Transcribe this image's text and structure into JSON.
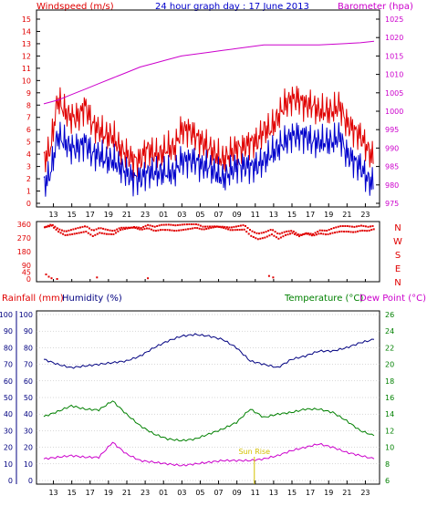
{
  "header": {
    "title": "24 hour graph day : 17 June 2013",
    "left_label": "Windspeed (m/s)",
    "right_label": "Barometer (hpa)"
  },
  "x_ticks": [
    "13",
    "15",
    "17",
    "19",
    "21",
    "23",
    "01",
    "03",
    "05",
    "07",
    "09",
    "11",
    "13",
    "15",
    "17",
    "19",
    "21",
    "23"
  ],
  "colors": {
    "red": "#e00000",
    "blue": "#0000cc",
    "magenta": "#cc00cc",
    "green": "#008000",
    "darkblue": "#000080",
    "yellow": "#d4c000",
    "grid": "#b0b0b0",
    "axis": "#000000"
  },
  "chart_data": [
    {
      "type": "line",
      "panel": "wind-barometer",
      "x_labels": [
        "13",
        "15",
        "17",
        "19",
        "21",
        "23",
        "01",
        "03",
        "05",
        "07",
        "09",
        "11",
        "13",
        "15",
        "17",
        "19",
        "21",
        "23"
      ],
      "left_axis": {
        "label": "Windspeed (m/s)",
        "ticks": [
          0,
          1,
          2,
          3,
          4,
          5,
          6,
          7,
          8,
          9,
          10,
          11,
          12,
          13,
          14,
          15
        ],
        "range": [
          0,
          15
        ]
      },
      "right_axis": {
        "label": "Barometer (hpa)",
        "ticks": [
          975,
          980,
          985,
          990,
          995,
          1000,
          1005,
          1010,
          1015,
          1020,
          1025
        ],
        "range": [
          975,
          1025
        ]
      },
      "series": [
        {
          "name": "Windspeed",
          "color": "#e00000",
          "axis": "left",
          "x": [
            0,
            0.5,
            1,
            1.5,
            2,
            2.5,
            3,
            3.5,
            4,
            4.5,
            5,
            5.5,
            6,
            6.5,
            7,
            7.5,
            8,
            8.5,
            9,
            9.5,
            10,
            10.5,
            11,
            11.5,
            12,
            12.5,
            13,
            13.5,
            14,
            14.5,
            15,
            15.5,
            16,
            16.5,
            17,
            17.5,
            18,
            18.5,
            19,
            19.5,
            20,
            20.5,
            21,
            21.5,
            22,
            22.5,
            23,
            23.5,
            24
          ],
          "y": [
            3.5,
            4.5,
            8.5,
            7.5,
            7,
            7,
            8,
            6.5,
            6,
            5.5,
            5.5,
            4.5,
            4,
            3.5,
            3.5,
            4.5,
            4,
            4,
            4.5,
            4.5,
            6,
            6,
            5.5,
            5,
            4.5,
            4,
            3.5,
            4,
            4.5,
            4.5,
            5,
            5,
            6,
            6,
            7,
            8,
            8.5,
            8.5,
            8,
            8,
            7.5,
            7.5,
            7.5,
            8,
            6.5,
            6,
            5.5,
            4.5,
            3.5
          ]
        },
        {
          "name": "Gust",
          "color": "#0000cc",
          "axis": "left",
          "x": [
            0,
            0.5,
            1,
            1.5,
            2,
            2.5,
            3,
            3.5,
            4,
            4.5,
            5,
            5.5,
            6,
            6.5,
            7,
            7.5,
            8,
            8.5,
            9,
            9.5,
            10,
            10.5,
            11,
            11.5,
            12,
            12.5,
            13,
            13.5,
            14,
            14.5,
            15,
            15.5,
            16,
            16.5,
            17,
            17.5,
            18,
            18.5,
            19,
            19.5,
            20,
            20.5,
            21,
            21.5,
            22,
            22.5,
            23,
            23.5,
            24
          ],
          "y": [
            1.5,
            2.5,
            5.5,
            5,
            4.5,
            4.5,
            5,
            4,
            4,
            3.5,
            3.5,
            3,
            2.5,
            2,
            2,
            2.5,
            2.5,
            2.5,
            2.5,
            2.5,
            3.5,
            3.5,
            3.5,
            3,
            3,
            2.5,
            2,
            2.5,
            3,
            3,
            3,
            3,
            3.5,
            4,
            4.5,
            5,
            5.5,
            5.5,
            5.5,
            5,
            5,
            5,
            5,
            5.5,
            4,
            3.5,
            3,
            2,
            1.5
          ]
        },
        {
          "name": "Barometer",
          "color": "#cc00cc",
          "axis": "right",
          "x": [
            0,
            1,
            2,
            3,
            4,
            5,
            6,
            7,
            8,
            9,
            10,
            11,
            12,
            13,
            14,
            15,
            16,
            17,
            18,
            19,
            20,
            21,
            22,
            23,
            24
          ],
          "y": [
            1002,
            1003,
            1004.5,
            1006,
            1007.5,
            1009,
            1010.5,
            1012,
            1013,
            1014,
            1015,
            1015.5,
            1016,
            1016.5,
            1017,
            1017.5,
            1018,
            1018,
            1018,
            1018,
            1018,
            1018.2,
            1018.4,
            1018.6,
            1019
          ]
        }
      ]
    },
    {
      "type": "scatter",
      "panel": "wind-direction",
      "x_labels": [
        "13",
        "15",
        "17",
        "19",
        "21",
        "23",
        "01",
        "03",
        "05",
        "07",
        "09",
        "11",
        "13",
        "15",
        "17",
        "19",
        "21",
        "23"
      ],
      "left_axis": {
        "ticks": [
          0,
          45,
          90,
          180,
          270,
          360
        ],
        "range": [
          0,
          360
        ]
      },
      "right_axis": {
        "ticks": [
          "N",
          "W",
          "S",
          "E",
          "N"
        ]
      },
      "series": [
        {
          "name": "Wind direction",
          "color": "#e00000",
          "x": [
            0,
            0.5,
            1,
            1.5,
            2,
            2.5,
            3,
            3.5,
            4,
            4.5,
            5,
            5.5,
            6,
            6.5,
            7,
            7.5,
            8,
            8.5,
            9,
            9.5,
            10,
            10.5,
            11,
            11.5,
            12,
            12.5,
            13,
            13.5,
            14,
            14.5,
            15,
            15.5,
            16,
            16.5,
            17,
            17.5,
            18,
            18.5,
            19,
            19.5,
            20,
            20.5,
            21,
            21.5,
            22,
            22.5,
            23,
            23.5,
            24
          ],
          "y": [
            340,
            355,
            320,
            300,
            310,
            320,
            330,
            300,
            320,
            310,
            305,
            330,
            335,
            340,
            330,
            345,
            330,
            340,
            340,
            335,
            340,
            345,
            350,
            335,
            340,
            345,
            340,
            330,
            335,
            340,
            300,
            280,
            290,
            310,
            280,
            300,
            310,
            285,
            300,
            290,
            310,
            305,
            320,
            330,
            330,
            325,
            335,
            330,
            340
          ]
        },
        {
          "name": "Wind direction (low)",
          "color": "#e00000",
          "x": [
            0.1,
            0.3,
            0.5,
            0.9,
            3.8,
            7.5,
            16.3,
            16.6
          ],
          "y": [
            30,
            15,
            5,
            0,
            10,
            5,
            20,
            10
          ]
        }
      ]
    },
    {
      "type": "line",
      "panel": "rain-humidity-temperature",
      "x_labels": [
        "13",
        "15",
        "17",
        "19",
        "21",
        "23",
        "01",
        "03",
        "05",
        "07",
        "09",
        "11",
        "13",
        "15",
        "17",
        "19",
        "21",
        "23"
      ],
      "left_axis_rain": {
        "label": "Rainfall (mm)",
        "ticks": [
          0,
          10,
          20,
          30,
          40,
          50,
          60,
          70,
          80,
          90,
          100
        ],
        "range": [
          0,
          100
        ]
      },
      "left_axis_humidity": {
        "label": "Humidity (%)",
        "ticks": [
          0,
          10,
          20,
          30,
          40,
          50,
          60,
          70,
          80,
          90,
          100
        ],
        "range": [
          0,
          100
        ]
      },
      "right_axis": {
        "label": "Temperature (°C)",
        "label2": "Dew Point (°C)",
        "ticks": [
          6,
          8,
          10,
          12,
          14,
          16,
          18,
          20,
          22,
          24,
          26
        ],
        "range": [
          6,
          26
        ]
      },
      "annotation": {
        "text": "Sun Rise",
        "x": 15.3
      },
      "series": [
        {
          "name": "Humidity",
          "color": "#000080",
          "axis": "left",
          "x": [
            0,
            1,
            2,
            3,
            4,
            5,
            6,
            7,
            8,
            9,
            10,
            11,
            12,
            13,
            14,
            15,
            16,
            17,
            18,
            19,
            20,
            21,
            22,
            23,
            24
          ],
          "y": [
            73,
            70,
            68,
            69,
            70,
            71,
            72,
            75,
            80,
            84,
            87,
            88,
            87,
            85,
            80,
            72,
            70,
            68,
            73,
            75,
            78,
            78,
            80,
            83,
            85
          ]
        },
        {
          "name": "Temperature",
          "color": "#008000",
          "axis": "right",
          "x": [
            0,
            1,
            2,
            3,
            4,
            5,
            6,
            7,
            8,
            9,
            10,
            11,
            12,
            13,
            14,
            15,
            16,
            17,
            18,
            19,
            20,
            21,
            22,
            23,
            24
          ],
          "y": [
            13.7,
            14.3,
            15,
            14.6,
            14.5,
            15.6,
            14,
            12.6,
            11.6,
            11,
            10.8,
            11,
            11.6,
            12.2,
            13,
            14.6,
            13.6,
            14,
            14.2,
            14.6,
            14.6,
            14.2,
            13.2,
            12,
            11.4
          ]
        },
        {
          "name": "Dew Point",
          "color": "#cc00cc",
          "axis": "right",
          "x": [
            0,
            1,
            2,
            3,
            4,
            5,
            6,
            7,
            8,
            9,
            10,
            11,
            12,
            13,
            14,
            15,
            16,
            17,
            18,
            19,
            20,
            21,
            22,
            23,
            24
          ],
          "y": [
            8.6,
            8.8,
            9,
            8.8,
            8.8,
            10.6,
            9.2,
            8.4,
            8.2,
            8,
            7.8,
            8,
            8.2,
            8.4,
            8.4,
            8.4,
            8.6,
            9,
            9.6,
            10,
            10.4,
            10,
            9.4,
            9,
            8.6
          ]
        }
      ]
    }
  ]
}
